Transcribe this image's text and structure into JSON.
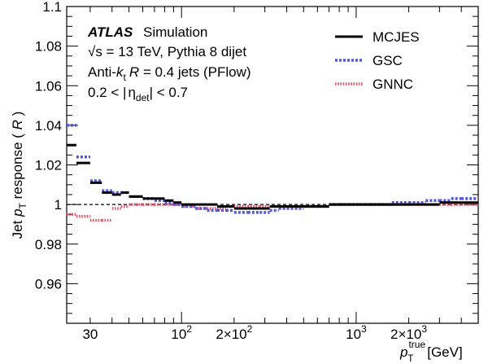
{
  "chart_data": {
    "type": "line",
    "x_scale": "log",
    "xlim": [
      22,
      5000
    ],
    "ylim": [
      0.94,
      1.1
    ],
    "reference_line": 1.0,
    "grid": false,
    "legend_placement": "top-right",
    "xlabel": {
      "main": "p",
      "sup": "true",
      "sub": "T",
      "unit": " [GeV]"
    },
    "ylabel": {
      "pre": "Jet ",
      "p": "p",
      "sub": "T",
      "post": " response ( ",
      "r": "R",
      "close": " )"
    },
    "x_tick_labels": [
      {
        "x": 30,
        "text": "30"
      },
      {
        "x": 100,
        "base": "10",
        "exp": "2"
      },
      {
        "x": 200,
        "base": "2×10",
        "exp": "2"
      },
      {
        "x": 1000,
        "base": "10",
        "exp": "3"
      },
      {
        "x": 2000,
        "base": "2×10",
        "exp": "3"
      }
    ],
    "y_tick_labels": [
      "0.96",
      "0.98",
      "1",
      "1.02",
      "1.04",
      "1.06",
      "1.08",
      "1.1"
    ],
    "y_ticks": [
      0.96,
      0.98,
      1.0,
      1.02,
      1.04,
      1.06,
      1.08,
      1.1
    ],
    "bin_edges": [
      22,
      25,
      30,
      35,
      40,
      45,
      50,
      55,
      60,
      70,
      80,
      90,
      100,
      120,
      140,
      160,
      180,
      200,
      240,
      280,
      320,
      360,
      400,
      500,
      600,
      700,
      800,
      900,
      1000,
      1200,
      1400,
      1600,
      2000,
      2500,
      3000,
      3500,
      4000,
      5000
    ],
    "series": [
      {
        "name": "MCJES",
        "color": "#000000",
        "style": "solid",
        "values": [
          1.03,
          1.021,
          1.011,
          1.006,
          1.005,
          1.006,
          1.004,
          1.004,
          1.003,
          1.003,
          1.002,
          1.001,
          1.0,
          1.0,
          1.0,
          0.999,
          0.999,
          0.998,
          0.998,
          0.998,
          0.999,
          0.999,
          0.999,
          0.999,
          0.999,
          1.0,
          1.0,
          1.0,
          1.0,
          1.0,
          1.0,
          1.0,
          1.0,
          1.0,
          1.001,
          1.001,
          1.001
        ]
      },
      {
        "name": "GSC",
        "color": "#5555dd",
        "style": "dotted",
        "values": [
          1.04,
          1.024,
          1.012,
          1.007,
          1.006,
          1.006,
          1.004,
          1.004,
          1.003,
          1.002,
          1.001,
          1.0,
          0.999,
          0.998,
          0.997,
          0.997,
          0.997,
          0.996,
          0.996,
          0.996,
          0.997,
          0.998,
          0.998,
          0.999,
          0.999,
          1.0,
          1.0,
          1.0,
          1.0,
          1.0,
          1.0,
          1.001,
          1.001,
          1.002,
          1.002,
          1.003,
          1.003
        ]
      },
      {
        "name": "GNNC",
        "color": "#e0556a",
        "style": "dotted",
        "values": [
          0.995,
          0.994,
          0.992,
          0.992,
          0.998,
          0.999,
          1.0,
          1.0,
          1.0,
          1.0,
          1.0,
          1.0,
          0.999,
          0.998,
          0.998,
          0.998,
          0.999,
          0.999,
          0.999,
          0.999,
          0.999,
          0.999,
          0.999,
          0.999,
          0.999,
          1.0,
          1.0,
          1.0,
          1.0,
          1.0,
          1.0,
          1.0,
          1.0,
          1.0,
          1.0,
          1.0,
          1.0
        ]
      }
    ],
    "annotations": {
      "atlas": "ATLAS",
      "simulation": "Simulation",
      "line1": "√s = 13 TeV, Pythia 8 dijet",
      "line2_a": "Anti-",
      "line2_k": "k",
      "line2_t": "t",
      "line2_r": "R",
      "line2_b": " = 0.4 jets (PFlow)",
      "line3_a": "0.2 < |",
      "line3_eta": "η",
      "line3_sub": "det",
      "line3_b": "| < 0.7"
    }
  }
}
